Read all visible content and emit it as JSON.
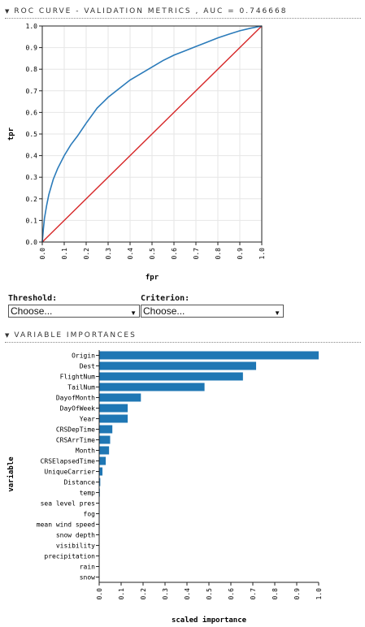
{
  "roc_section": {
    "header": "ROC CURVE - VALIDATION METRICS , AUC = 0.746668"
  },
  "controls": {
    "threshold_label": "Threshold:",
    "threshold_value": "Choose...",
    "criterion_label": "Criterion:",
    "criterion_value": "Choose..."
  },
  "varimp_section": {
    "header": "VARIABLE IMPORTANCES"
  },
  "colors": {
    "roc_line": "#2b7bba",
    "diagonal": "#d62728",
    "bar": "#1f77b4"
  },
  "chart_data": [
    {
      "type": "line",
      "xlabel": "fpr",
      "ylabel": "tpr",
      "xlim": [
        0,
        1
      ],
      "ylim": [
        0,
        1
      ],
      "x_ticks": [
        "0.0",
        "0.1",
        "0.2",
        "0.3",
        "0.4",
        "0.5",
        "0.6",
        "0.7",
        "0.8",
        "0.9",
        "1.0"
      ],
      "y_ticks": [
        "0.0",
        "0.1",
        "0.2",
        "0.3",
        "0.4",
        "0.5",
        "0.6",
        "0.7",
        "0.8",
        "0.9",
        "1.0"
      ],
      "series": [
        {
          "x": [
            0,
            0.005,
            0.01,
            0.02,
            0.03,
            0.05,
            0.07,
            0.1,
            0.13,
            0.16,
            0.2,
            0.25,
            0.3,
            0.35,
            0.4,
            0.45,
            0.5,
            0.55,
            0.6,
            0.65,
            0.7,
            0.75,
            0.8,
            0.85,
            0.9,
            0.95,
            1.0
          ],
          "y": [
            0,
            0.06,
            0.11,
            0.17,
            0.22,
            0.29,
            0.34,
            0.4,
            0.45,
            0.49,
            0.55,
            0.62,
            0.67,
            0.71,
            0.75,
            0.78,
            0.81,
            0.84,
            0.865,
            0.885,
            0.905,
            0.925,
            0.945,
            0.962,
            0.978,
            0.99,
            1.0
          ]
        },
        {
          "x": [
            0,
            1
          ],
          "y": [
            0,
            1
          ]
        }
      ]
    },
    {
      "type": "bar",
      "orientation": "horizontal",
      "xlabel": "scaled importance",
      "ylabel": "variable",
      "xlim": [
        0,
        1
      ],
      "x_ticks": [
        "0.0",
        "0.1",
        "0.2",
        "0.3",
        "0.4",
        "0.5",
        "0.6",
        "0.7",
        "0.8",
        "0.9",
        "1.0"
      ],
      "categories": [
        "Origin",
        "Dest",
        "FlightNum",
        "TailNum",
        "DayofMonth",
        "DayOfWeek",
        "Year",
        "CRSDepTime",
        "CRSArrTime",
        "Month",
        "CRSElapsedTime",
        "UniqueCarrier",
        "Distance",
        "temp",
        "sea level pres",
        "fog",
        "mean wind speed",
        "snow depth",
        "visibility",
        "precipitation",
        "rain",
        "snow"
      ],
      "values": [
        1.0,
        0.715,
        0.655,
        0.48,
        0.19,
        0.13,
        0.13,
        0.06,
        0.05,
        0.045,
        0.03,
        0.015,
        0.005,
        0.003,
        0.002,
        0.002,
        0.002,
        0.001,
        0.001,
        0.001,
        0.001,
        0.001
      ]
    }
  ]
}
